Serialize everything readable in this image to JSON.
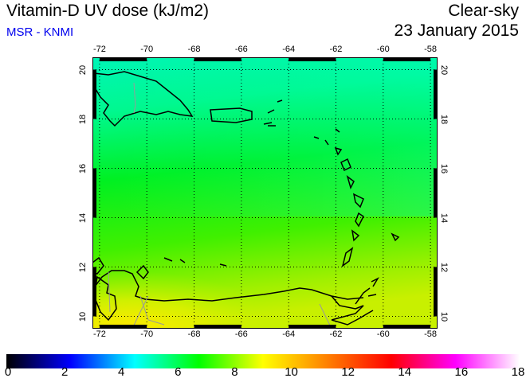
{
  "header": {
    "title": "Vitamin-D UV dose (kJ/m2)",
    "source": "MSR - KNMI",
    "sky_condition": "Clear-sky",
    "date": "23 January 2015"
  },
  "map": {
    "lon_ticks": [
      "-72",
      "-70",
      "-68",
      "-66",
      "-64",
      "-62",
      "-60",
      "-58"
    ],
    "lat_ticks": [
      "20",
      "18",
      "16",
      "14",
      "12",
      "10"
    ],
    "lon_values": [
      -72,
      -70,
      -68,
      -66,
      -64,
      -62,
      -60,
      -58
    ],
    "lat_values": [
      20,
      18,
      16,
      14,
      12,
      10
    ],
    "lon_range": [
      -72.3,
      -57.7
    ],
    "lat_range": [
      9.5,
      20.5
    ]
  },
  "colorbar": {
    "labels": [
      "0",
      "2",
      "4",
      "6",
      "8",
      "10",
      "12",
      "14",
      "16",
      "18"
    ],
    "range": [
      0,
      18
    ],
    "colors": [
      "#000000",
      "#0000ff",
      "#00ffff",
      "#00ff00",
      "#ffff00",
      "#ff8000",
      "#ff0000",
      "#ff00ff",
      "#ffffff"
    ]
  }
}
